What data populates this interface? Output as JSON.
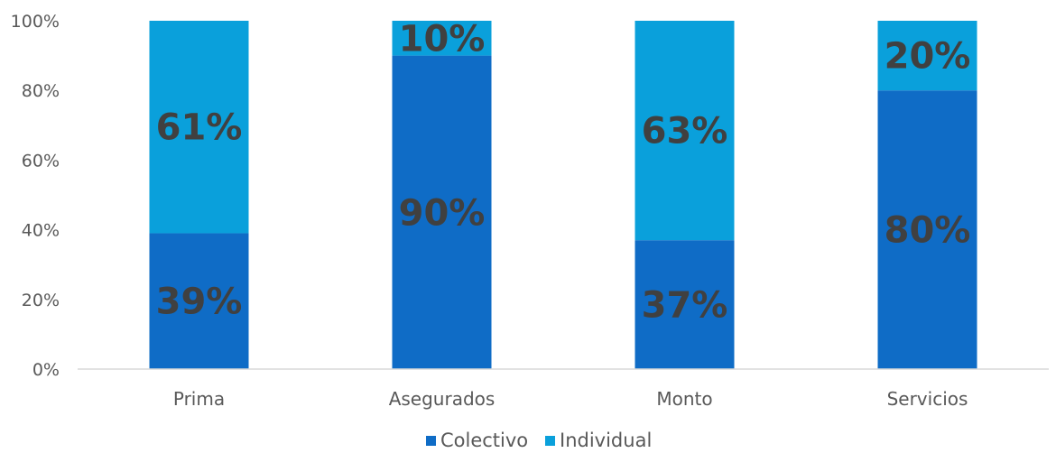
{
  "chart_data": {
    "type": "bar",
    "stacked": true,
    "percent_stacked": true,
    "categories": [
      "Prima",
      "Asegurados",
      "Monto",
      "Servicios"
    ],
    "series": [
      {
        "name": "Colectivo",
        "values": [
          39,
          90,
          37,
          80
        ],
        "labels": [
          "39%",
          "90%",
          "37%",
          "80%"
        ],
        "color": "#0F6CC6"
      },
      {
        "name": "Individual",
        "values": [
          61,
          10,
          63,
          20
        ],
        "labels": [
          "61%",
          "10%",
          "63%",
          "20%"
        ],
        "color": "#0AA0DB"
      }
    ],
    "y_ticks": [
      "0%",
      "20%",
      "40%",
      "60%",
      "80%",
      "100%"
    ],
    "ylim": [
      0,
      100
    ],
    "grid": false,
    "legend": "bottom-center",
    "axis_color": "#D9D9D9"
  }
}
